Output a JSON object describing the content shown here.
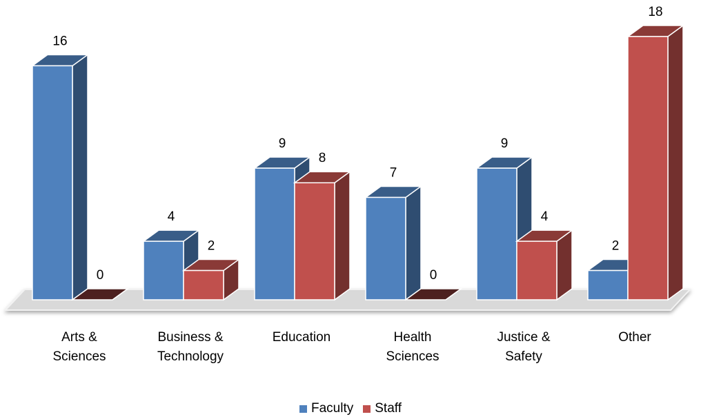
{
  "chart_data": {
    "type": "bar3d",
    "categories": [
      "Arts & Sciences",
      "Business & Technology",
      "Education",
      "Health Sciences",
      "Justice & Safety",
      "Other"
    ],
    "series": [
      {
        "name": "Faculty",
        "color": "#4f81bd",
        "values": [
          16,
          4,
          9,
          7,
          9,
          2
        ]
      },
      {
        "name": "Staff",
        "color": "#c0504d",
        "values": [
          0,
          2,
          8,
          0,
          4,
          18
        ]
      }
    ],
    "legend": "bottom"
  }
}
